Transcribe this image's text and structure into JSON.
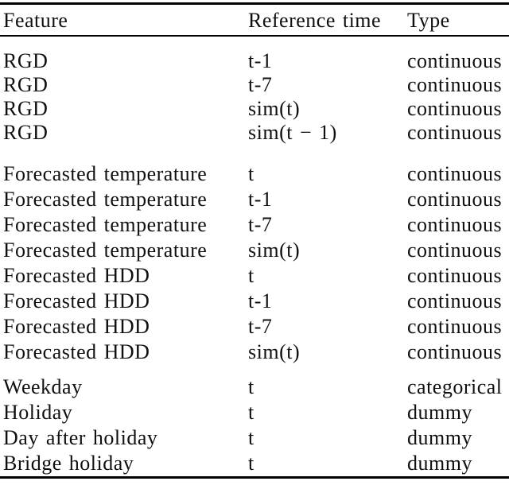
{
  "table": {
    "columns": [
      "Feature",
      "Reference time",
      "Type"
    ],
    "groups": [
      {
        "name": "rgd",
        "rows": [
          [
            "RGD",
            "t-1",
            "continuous"
          ],
          [
            "RGD",
            "t-7",
            "continuous"
          ],
          [
            "RGD",
            "sim(t)",
            "continuous"
          ],
          [
            "RGD",
            "sim(t − 1)",
            "continuous"
          ]
        ]
      },
      {
        "name": "forecast",
        "rows": [
          [
            "Forecasted temperature",
            "t",
            "continuous"
          ],
          [
            "Forecasted temperature",
            "t-1",
            "continuous"
          ],
          [
            "Forecasted temperature",
            "t-7",
            "continuous"
          ],
          [
            "Forecasted temperature",
            "sim(t)",
            "continuous"
          ],
          [
            "Forecasted HDD",
            "t",
            "continuous"
          ],
          [
            "Forecasted HDD",
            "t-1",
            "continuous"
          ],
          [
            "Forecasted HDD",
            "t-7",
            "continuous"
          ],
          [
            "Forecasted HDD",
            "sim(t)",
            "continuous"
          ]
        ]
      },
      {
        "name": "calendar",
        "rows": [
          [
            "Weekday",
            "t",
            "categorical"
          ],
          [
            "Holiday",
            "t",
            "dummy"
          ],
          [
            "Day after holiday",
            "t",
            "dummy"
          ],
          [
            "Bridge holiday",
            "t",
            "dummy"
          ]
        ]
      }
    ],
    "colors": {
      "text": "#101010",
      "rule": "#000000",
      "background": "#ffffff"
    }
  }
}
